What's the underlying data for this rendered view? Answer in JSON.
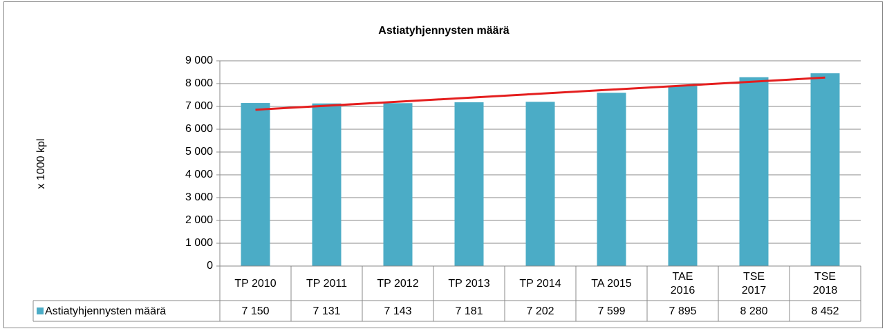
{
  "chart_data": {
    "type": "bar",
    "title": "Astiatyhjennysten määrä",
    "y_label": "x 1000 kpl",
    "categories": [
      "TP 2010",
      "TP 2011",
      "TP 2012",
      "TP 2013",
      "TP 2014",
      "TA 2015",
      "TAE\n2016",
      "TSE\n2017",
      "TSE\n2018"
    ],
    "series": [
      {
        "name": "Astiatyhjennysten määrä",
        "color": "#4bacc6",
        "values": [
          7150,
          7131,
          7143,
          7181,
          7202,
          7599,
          7895,
          8280,
          8452
        ],
        "value_labels": [
          "7 150",
          "7 131",
          "7 143",
          "7 181",
          "7 202",
          "7 599",
          "7 895",
          "8 280",
          "8 452"
        ]
      }
    ],
    "trendline": {
      "type": "linear",
      "color": "#e41e1e"
    },
    "ylim": [
      0,
      9000
    ],
    "yticks": [
      0,
      {
        "value": 1000,
        "label": "1 000"
      },
      {
        "value": 2000,
        "label": "2 000"
      },
      {
        "value": 3000,
        "label": "3 000"
      },
      {
        "value": 4000,
        "label": "4 000"
      },
      {
        "value": 5000,
        "label": "5 000"
      },
      {
        "value": 6000,
        "label": "6 000"
      },
      {
        "value": 7000,
        "label": "7 000"
      },
      {
        "value": 8000,
        "label": "8 000"
      },
      {
        "value": 9000,
        "label": "9 000"
      }
    ],
    "grid": true,
    "data_table": true
  }
}
